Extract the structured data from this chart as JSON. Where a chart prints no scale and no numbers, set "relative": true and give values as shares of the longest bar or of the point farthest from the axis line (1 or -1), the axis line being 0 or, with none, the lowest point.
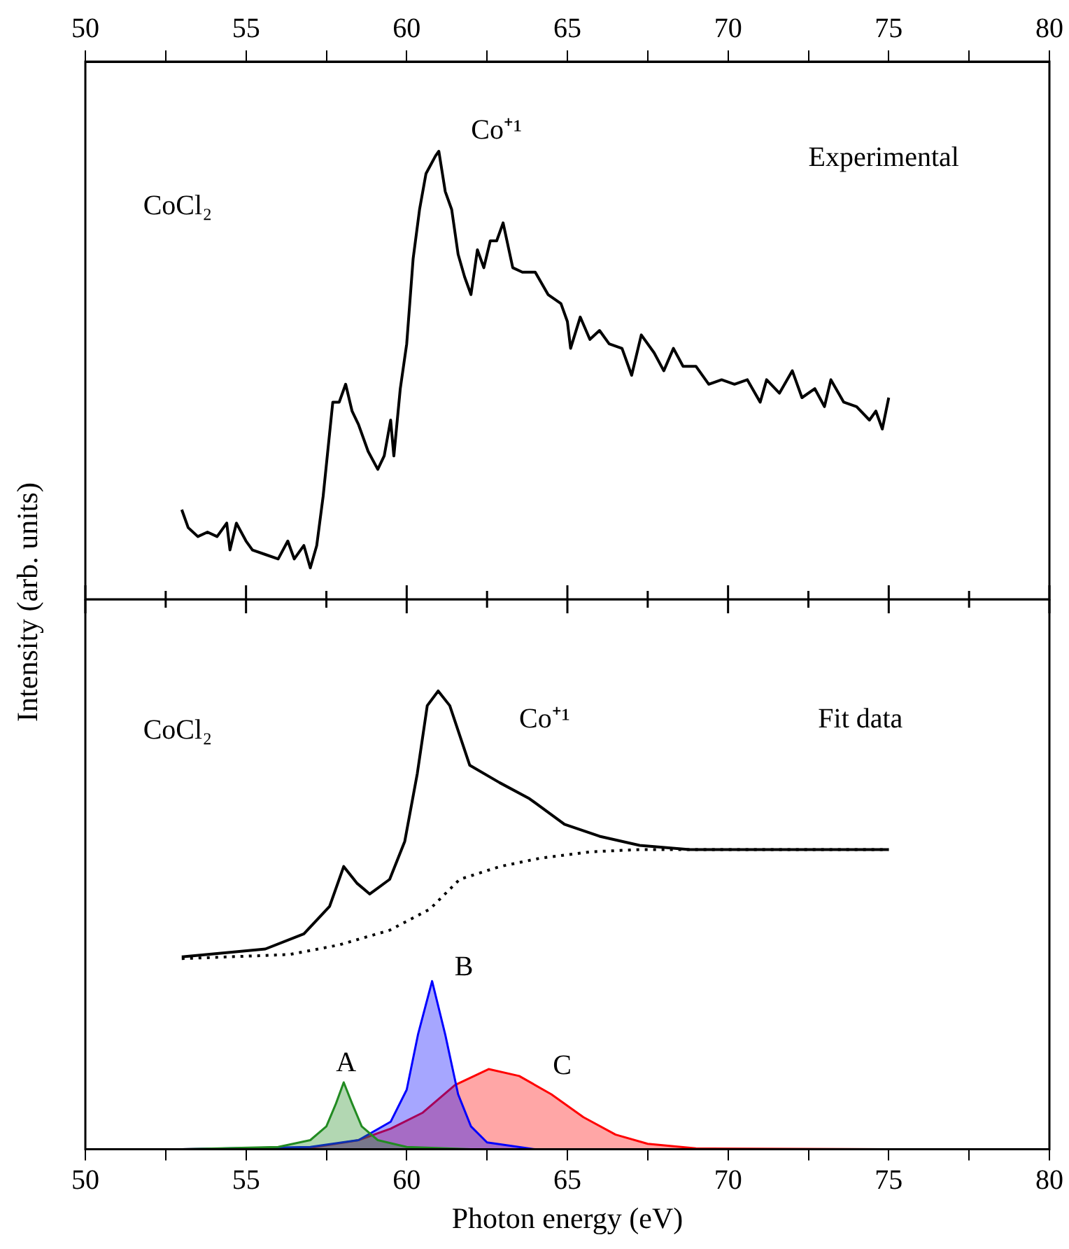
{
  "chart_data": [
    {
      "type": "line",
      "relative": true,
      "grid": false,
      "legend": false,
      "marker": "none",
      "xlim": [
        50,
        80
      ],
      "xticks": [
        50,
        {
          "value": 52.5,
          "label": null
        },
        55,
        {
          "value": 57.5,
          "label": null
        },
        60,
        {
          "value": 62.5,
          "label": null
        },
        65,
        {
          "value": 67.5,
          "label": null
        },
        70,
        {
          "value": 72.5,
          "label": null
        },
        75,
        {
          "value": 77.5,
          "label": null
        },
        80
      ],
      "annotations": [
        "CoCl₂",
        "Co⁺¹",
        "Experimental"
      ],
      "series": [
        {
          "color": "#000000",
          "line_style": "solid",
          "x": [
            53.0,
            53.2,
            53.5,
            53.8,
            54.1,
            54.4,
            54.5,
            54.7,
            55.0,
            55.2,
            55.6,
            56.0,
            56.3,
            56.5,
            56.8,
            57.0,
            57.2,
            57.4,
            57.7,
            57.9,
            58.1,
            58.3,
            58.5,
            58.8,
            59.1,
            59.3,
            59.5,
            59.6,
            59.8,
            60.0,
            60.2,
            60.4,
            60.6,
            60.9,
            61.0,
            61.2,
            61.4,
            61.6,
            61.8,
            62.0,
            62.2,
            62.4,
            62.6,
            62.8,
            63.0,
            63.3,
            63.6,
            64.0,
            64.4,
            64.8,
            65.0,
            65.1,
            65.4,
            65.7,
            66.0,
            66.3,
            66.7,
            67.0,
            67.3,
            67.7,
            68.0,
            68.3,
            68.6,
            69.0,
            69.4,
            69.8,
            70.2,
            70.6,
            71.0,
            71.2,
            71.6,
            72.0,
            72.3,
            72.7,
            73.0,
            73.2,
            73.6,
            74.0,
            74.4,
            74.6,
            74.8,
            75.0
          ],
          "values": [
            0.2,
            0.16,
            0.14,
            0.15,
            0.14,
            0.17,
            0.11,
            0.17,
            0.13,
            0.11,
            0.1,
            0.09,
            0.13,
            0.09,
            0.12,
            0.07,
            0.12,
            0.23,
            0.44,
            0.44,
            0.48,
            0.42,
            0.39,
            0.33,
            0.29,
            0.32,
            0.4,
            0.32,
            0.47,
            0.57,
            0.76,
            0.87,
            0.95,
            0.99,
            1.0,
            0.91,
            0.87,
            0.77,
            0.72,
            0.68,
            0.78,
            0.74,
            0.8,
            0.8,
            0.84,
            0.74,
            0.73,
            0.73,
            0.68,
            0.66,
            0.62,
            0.56,
            0.63,
            0.58,
            0.6,
            0.57,
            0.56,
            0.5,
            0.59,
            0.55,
            0.51,
            0.56,
            0.52,
            0.52,
            0.48,
            0.49,
            0.48,
            0.49,
            0.44,
            0.49,
            0.46,
            0.51,
            0.45,
            0.47,
            0.43,
            0.49,
            0.44,
            0.43,
            0.4,
            0.42,
            0.38,
            0.45
          ]
        }
      ]
    },
    {
      "type": "line",
      "relative": true,
      "grid": false,
      "legend": false,
      "marker": "none",
      "xlabel": "Photon energy (eV)",
      "ylabel": "Intensity (arb. units)",
      "xlim": [
        50,
        80
      ],
      "xticks": [
        50,
        {
          "value": 52.5,
          "label": null
        },
        55,
        {
          "value": 57.5,
          "label": null
        },
        60,
        {
          "value": 62.5,
          "label": null
        },
        65,
        {
          "value": 67.5,
          "label": null
        },
        70,
        {
          "value": 72.5,
          "label": null
        },
        75,
        {
          "value": 77.5,
          "label": null
        },
        80
      ],
      "annotations": [
        "CoCl₂",
        "Co⁺¹",
        "Fit data",
        "A",
        "B",
        "C"
      ],
      "series": [
        {
          "type": "line",
          "color": "#000000",
          "line_style": "solid",
          "x": [
            53.0,
            55.6,
            56.8,
            57.6,
            58.04,
            58.46,
            58.85,
            59.47,
            59.94,
            60.33,
            60.64,
            60.98,
            61.34,
            61.96,
            62.89,
            63.82,
            64.91,
            66.0,
            67.25,
            68.8,
            75.0
          ],
          "values": [
            0.42,
            0.437,
            0.47,
            0.53,
            0.617,
            0.58,
            0.557,
            0.589,
            0.672,
            0.82,
            0.968,
            1.0,
            0.968,
            0.838,
            0.8,
            0.765,
            0.709,
            0.683,
            0.663,
            0.654,
            0.654
          ]
        },
        {
          "type": "line",
          "color": "#000000",
          "line_style": "dotted",
          "x": [
            53.0,
            56.36,
            57.9,
            59.47,
            60.72,
            61.65,
            62.9,
            64.14,
            65.7,
            67.25,
            75.0
          ],
          "values": [
            0.416,
            0.425,
            0.446,
            0.478,
            0.524,
            0.589,
            0.617,
            0.635,
            0.649,
            0.654,
            0.654
          ]
        },
        {
          "type": "area",
          "color": "#228b22",
          "line_style": "solid",
          "x": [
            53,
            56,
            57,
            57.5,
            57.8,
            58.04,
            58.3,
            58.6,
            59.1,
            60,
            62
          ],
          "values": [
            0,
            0.005,
            0.02,
            0.05,
            0.1,
            0.146,
            0.1,
            0.05,
            0.02,
            0.005,
            0
          ]
        },
        {
          "type": "area",
          "color": "#0000ff",
          "line_style": "solid",
          "x": [
            53,
            57,
            58.5,
            59.5,
            60.0,
            60.35,
            60.79,
            61.2,
            61.6,
            62.0,
            62.5,
            64
          ],
          "values": [
            0,
            0.005,
            0.02,
            0.06,
            0.13,
            0.25,
            0.367,
            0.25,
            0.12,
            0.05,
            0.015,
            0
          ]
        },
        {
          "type": "area",
          "color": "#ff0000",
          "line_style": "solid",
          "x": [
            53,
            57,
            58.5,
            59.5,
            60.5,
            61.5,
            62.55,
            63.5,
            64.5,
            65.5,
            66.5,
            67.5,
            69,
            75
          ],
          "values": [
            0,
            0.003,
            0.02,
            0.045,
            0.08,
            0.14,
            0.175,
            0.16,
            0.12,
            0.07,
            0.032,
            0.012,
            0.002,
            0
          ]
        }
      ]
    }
  ]
}
